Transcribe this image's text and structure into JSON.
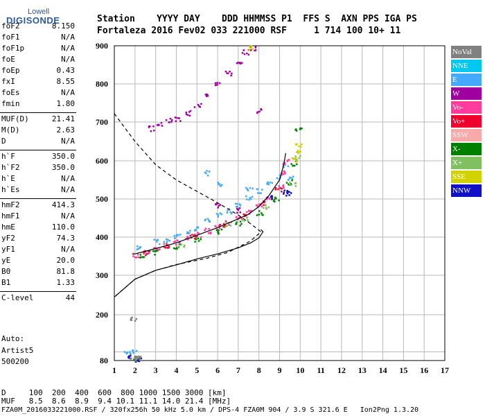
{
  "logo": {
    "line1": "Lowell",
    "line2": "DIGISONDE"
  },
  "header": {
    "labels_row": "Station    YYYY DAY    DDD HHMMSS P1  FFS S  AXN PPS IGA PS",
    "values_row": "Fortaleza 2016 Fev02 033 221000 RSF     1 714 100 10+ 11"
  },
  "params_group1": [
    {
      "name": "foF2",
      "value": "8.150"
    },
    {
      "name": "foF1",
      "value": "N/A"
    },
    {
      "name": "foF1p",
      "value": "N/A"
    },
    {
      "name": "foE",
      "value": "N/A"
    },
    {
      "name": "foEp",
      "value": "0.43"
    },
    {
      "name": "fxI",
      "value": "8.55"
    },
    {
      "name": "foEs",
      "value": "N/A"
    },
    {
      "name": "fmin",
      "value": "1.80"
    }
  ],
  "params_group2": [
    {
      "name": "MUF(D)",
      "value": "21.41"
    },
    {
      "name": "M(D)",
      "value": "2.63"
    },
    {
      "name": "D",
      "value": "N/A"
    }
  ],
  "params_group3": [
    {
      "name": "h`F",
      "value": "350.0"
    },
    {
      "name": "h`F2",
      "value": "350.0"
    },
    {
      "name": "h`E",
      "value": "N/A"
    },
    {
      "name": "h`Es",
      "value": "N/A"
    }
  ],
  "params_group4": [
    {
      "name": "hmF2",
      "value": "414.3"
    },
    {
      "name": "hmF1",
      "value": "N/A"
    },
    {
      "name": "hmE",
      "value": "110.0"
    },
    {
      "name": "yF2",
      "value": "74.3"
    },
    {
      "name": "yF1",
      "value": "N/A"
    },
    {
      "name": "yE",
      "value": "20.0"
    },
    {
      "name": "B0",
      "value": "81.8"
    },
    {
      "name": "B1",
      "value": "1.33"
    }
  ],
  "params_group5": [
    {
      "name": "C-level",
      "value": "44"
    }
  ],
  "autoscaling": {
    "line1": "Auto:",
    "line2": "Artist5",
    "line3": "500200"
  },
  "legend": [
    {
      "label": "NoVal",
      "color": "#808080"
    },
    {
      "label": "NNE",
      "color": "#00c8f0"
    },
    {
      "label": "E",
      "color": "#44aaff"
    },
    {
      "label": "W",
      "color": "#a000a0"
    },
    {
      "label": "Vo-",
      "color": "#ff3c9c"
    },
    {
      "label": "Vo+",
      "color": "#f0002c"
    },
    {
      "label": "SSW",
      "color": "#f8aaaa"
    },
    {
      "label": "X-",
      "color": "#008000"
    },
    {
      "label": "X+",
      "color": "#80c060"
    },
    {
      "label": "SSE",
      "color": "#d2d200"
    },
    {
      "label": "NNW",
      "color": "#1010c8"
    }
  ],
  "footer": {
    "row1": "D     100  200  400  600  800 1000 1500 3000 [km]",
    "row2": "MUF   8.5  8.6  8.9  9.4 10.1 11.1 14.0 21.4 [MHz]",
    "row3": "FZA0M_2016033221000.RSF / 320fx256h 50 kHz 5.0 km / DPS-4 FZA0M 904 / 3.9 S 321.6 E   Ion2Png 1.3.20"
  },
  "chart_data": {
    "type": "scatter",
    "xlim": [
      1,
      17
    ],
    "ylim": [
      80,
      900
    ],
    "x_ticks": [
      1,
      2,
      3,
      4,
      5,
      6,
      7,
      8,
      9,
      10,
      11,
      12,
      13,
      14,
      15,
      16,
      17
    ],
    "y_ticks": [
      80,
      100,
      200,
      300,
      400,
      500,
      600,
      700,
      800,
      900
    ],
    "y_tick_labels": [
      "80",
      "",
      "200",
      "300",
      "400",
      "500",
      "600",
      "700",
      "800",
      "900"
    ],
    "grid": true,
    "profile_solid": [
      [
        1.9,
        355
      ],
      [
        2.3,
        360
      ],
      [
        3,
        370
      ],
      [
        4,
        385
      ],
      [
        5,
        405
      ],
      [
        6,
        425
      ],
      [
        7,
        448
      ],
      [
        7.5,
        460
      ],
      [
        8,
        480
      ],
      [
        8.5,
        510
      ],
      [
        9,
        550
      ],
      [
        9.2,
        590
      ],
      [
        9.3,
        620
      ]
    ],
    "true_height_solid": [
      [
        1,
        245
      ],
      [
        2,
        290
      ],
      [
        3,
        313
      ],
      [
        4,
        327
      ],
      [
        5,
        343
      ],
      [
        6,
        356
      ],
      [
        7,
        372
      ],
      [
        7.6,
        385
      ],
      [
        8,
        398
      ],
      [
        8.2,
        414
      ],
      [
        8.1,
        420
      ]
    ],
    "profile_dashed": [
      [
        1,
        722
      ],
      [
        2,
        650
      ],
      [
        3,
        590
      ],
      [
        4,
        550
      ],
      [
        5,
        520
      ],
      [
        6,
        490
      ],
      [
        7,
        458
      ],
      [
        7.6,
        435
      ],
      [
        8.1,
        414
      ],
      [
        7.6,
        390
      ],
      [
        6.5,
        360
      ],
      [
        5.5,
        345
      ],
      [
        4,
        328
      ],
      [
        3,
        313
      ],
      [
        2,
        290
      ],
      [
        1,
        245
      ]
    ],
    "echo_traces": [
      {
        "name": "E",
        "color": "#44aaff",
        "points": [
          [
            2.2,
            375
          ],
          [
            3,
            390
          ],
          [
            4,
            405
          ],
          [
            5,
            425
          ],
          [
            5.5,
            445
          ],
          [
            6,
            460
          ],
          [
            6.5,
            470
          ],
          [
            7,
            488
          ],
          [
            7.5,
            505
          ],
          [
            8,
            522
          ],
          [
            8.5,
            540
          ],
          [
            9,
            560
          ],
          [
            9.3,
            590
          ],
          [
            3.5,
            395
          ],
          [
            4.5,
            418
          ],
          [
            6,
            540
          ],
          [
            5.5,
            570
          ],
          [
            7.5,
            530
          ],
          [
            1.6,
            98
          ],
          [
            1.9,
            100
          ],
          [
            9.5,
            555
          ]
        ]
      },
      {
        "name": "Vo-",
        "color": "#ff3c9c",
        "points": [
          [
            2,
            355
          ],
          [
            2.5,
            362
          ],
          [
            3,
            372
          ],
          [
            3.5,
            380
          ],
          [
            4,
            388
          ],
          [
            4.5,
            398
          ],
          [
            5,
            407
          ],
          [
            5.5,
            418
          ],
          [
            6,
            428
          ],
          [
            6.5,
            440
          ],
          [
            7,
            453
          ],
          [
            7.5,
            468
          ],
          [
            8,
            485
          ],
          [
            8.5,
            505
          ],
          [
            9,
            535
          ],
          [
            9.2,
            570
          ],
          [
            9.3,
            600
          ]
        ]
      },
      {
        "name": "W",
        "color": "#a000a0",
        "points": [
          [
            2.8,
            685
          ],
          [
            3.2,
            695
          ],
          [
            3.6,
            705
          ],
          [
            4,
            710
          ],
          [
            4.5,
            725
          ],
          [
            5,
            745
          ],
          [
            5.5,
            770
          ],
          [
            6,
            800
          ],
          [
            6.5,
            830
          ],
          [
            7,
            860
          ],
          [
            7.3,
            885
          ],
          [
            7.7,
            895
          ],
          [
            8,
            730
          ],
          [
            6,
            485
          ],
          [
            7,
            472
          ]
        ]
      },
      {
        "name": "Vo+",
        "color": "#f0002c",
        "points": [
          [
            2.5,
            360
          ],
          [
            3.5,
            380
          ],
          [
            4.8,
            404
          ],
          [
            6.2,
            432
          ],
          [
            7.2,
            458
          ],
          [
            8.2,
            492
          ],
          [
            8.9,
            525
          ]
        ]
      },
      {
        "name": "X-",
        "color": "#008000",
        "points": [
          [
            2.3,
            350
          ],
          [
            3,
            362
          ],
          [
            4,
            378
          ],
          [
            5,
            395
          ],
          [
            6,
            416
          ],
          [
            7,
            438
          ],
          [
            8,
            465
          ],
          [
            8.8,
            500
          ],
          [
            9.4,
            545
          ],
          [
            9.7,
            595
          ],
          [
            9.9,
            680
          ],
          [
            2,
            86
          ]
        ]
      },
      {
        "name": "X+",
        "color": "#80c060",
        "points": [
          [
            6.5,
            435
          ],
          [
            7.3,
            450
          ],
          [
            8.3,
            480
          ],
          [
            9.6,
            540
          ],
          [
            9.8,
            610
          ],
          [
            4.2,
            380
          ]
        ]
      },
      {
        "name": "NNW",
        "color": "#1010c8",
        "points": [
          [
            8.5,
            505
          ],
          [
            9.2,
            520
          ],
          [
            9.4,
            515
          ],
          [
            1.8,
            88
          ],
          [
            2.1,
            84
          ]
        ]
      },
      {
        "name": "SSE",
        "color": "#d2d200",
        "points": [
          [
            9.8,
            625
          ],
          [
            9.9,
            640
          ],
          [
            9.7,
            605
          ],
          [
            7.5,
            895
          ]
        ]
      },
      {
        "name": "NoVal",
        "color": "#808080",
        "points": [
          [
            2.1,
            88
          ],
          [
            1.9,
            84
          ],
          [
            2.0,
            92
          ],
          [
            1.9,
            190
          ]
        ]
      }
    ]
  }
}
